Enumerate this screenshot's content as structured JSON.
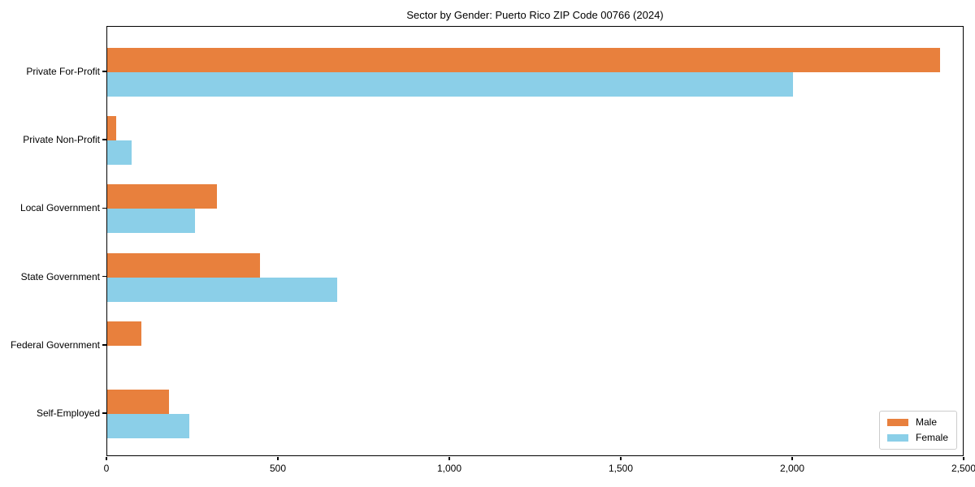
{
  "title": "Sector by Gender: Puerto Rico ZIP Code 00766 (2024)",
  "colors": {
    "male": "#e8803d",
    "female": "#8bcfe8",
    "axis": "#000000",
    "legend_border": "#cccccc",
    "background": "#ffffff"
  },
  "legend": {
    "position": "lower right",
    "entries": [
      {
        "label": "Male",
        "color": "#e8803d"
      },
      {
        "label": "Female",
        "color": "#8bcfe8"
      }
    ]
  },
  "chart_data": {
    "type": "bar",
    "orientation": "horizontal",
    "title": "Sector by Gender: Puerto Rico ZIP Code 00766 (2024)",
    "xlabel": "",
    "ylabel": "",
    "categories": [
      "Private For-Profit",
      "Private Non-Profit",
      "Local Government",
      "State Government",
      "Federal Government",
      "Self-Employed"
    ],
    "series": [
      {
        "name": "Male",
        "color": "#e8803d",
        "values": [
          2430,
          25,
          320,
          445,
          100,
          180
        ]
      },
      {
        "name": "Female",
        "color": "#8bcfe8",
        "values": [
          2000,
          70,
          255,
          670,
          0,
          240
        ]
      }
    ],
    "xlim": [
      0,
      2500
    ],
    "xticks": [
      0,
      500,
      1000,
      1500,
      2000,
      2500
    ],
    "xtick_labels": [
      "0",
      "500",
      "1,000",
      "1,500",
      "2,000",
      "2,500"
    ],
    "grid": false,
    "legend_position": "lower right"
  }
}
